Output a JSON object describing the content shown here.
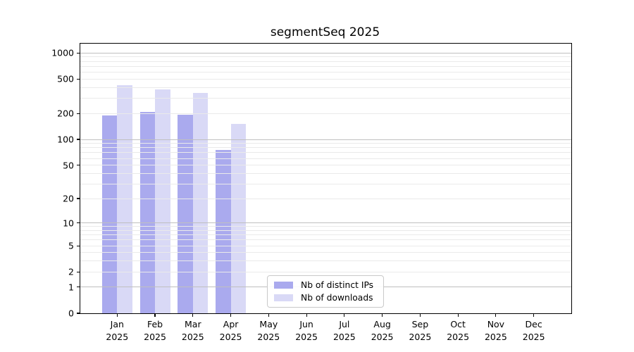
{
  "chart_data": {
    "type": "bar",
    "title": "segmentSeq 2025",
    "year": "2025",
    "months": [
      "Jan",
      "Feb",
      "Mar",
      "Apr",
      "May",
      "Jun",
      "Jul",
      "Aug",
      "Sep",
      "Oct",
      "Nov",
      "Dec"
    ],
    "series": [
      {
        "name": "Nb of distinct IPs",
        "color": "#aaaaee",
        "values": [
          190,
          210,
          193,
          76,
          null,
          null,
          null,
          null,
          null,
          null,
          null,
          null
        ]
      },
      {
        "name": "Nb of downloads",
        "color": "#d9d9f6",
        "values": [
          428,
          380,
          346,
          152,
          null,
          null,
          null,
          null,
          null,
          null,
          null,
          null
        ]
      }
    ],
    "xlabel": "",
    "ylabel": "",
    "y_scale": "log1p",
    "y_max": 1283,
    "y_ticks": [
      1000,
      500,
      200,
      100,
      50,
      20,
      10,
      5,
      2,
      1,
      0
    ],
    "grid_major": [
      1,
      10,
      100,
      1000
    ],
    "grid_minor": [
      2,
      3,
      4,
      5,
      6,
      7,
      8,
      9,
      20,
      30,
      40,
      50,
      60,
      70,
      80,
      90,
      200,
      300,
      400,
      500,
      600,
      700,
      800,
      900
    ],
    "grid": "on",
    "legend_position": "lower center-left"
  }
}
